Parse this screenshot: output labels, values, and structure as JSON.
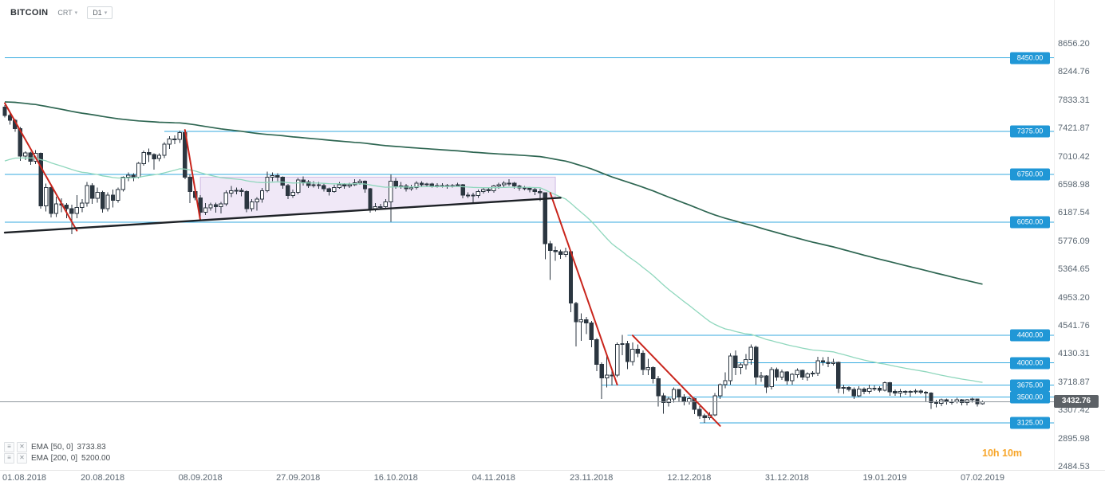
{
  "toolbar": {
    "symbol": "BITCOIN",
    "chart_type": "CRT",
    "timeframe": "D1"
  },
  "icons": {
    "caret": "▾",
    "menu": "≡",
    "close": "✕"
  },
  "countdown": "10h 10m",
  "indicators": [
    {
      "name": "EMA",
      "params": "[50, 0]",
      "value": "3733.83"
    },
    {
      "name": "EMA",
      "params": "[200, 0]",
      "value": "5200.00"
    }
  ],
  "colors": {
    "accent_line": "#35aadf",
    "accent_badge": "#2097d6",
    "candle_stroke": "#2b3640",
    "bear_fill": "#2b3640",
    "bull_fill": "#ffffff",
    "ema50": "#8fd7bd",
    "ema200": "#2e6652",
    "red": "#c9251c",
    "black": "#1d2126",
    "region_fill": "rgba(205,180,230,0.30)",
    "region_stroke": "rgba(160,120,200,0.45)",
    "current_line": "#8e959b",
    "current_badge": "#5c6166",
    "countdown": "#f7a528"
  },
  "chart_data": {
    "type": "candlestick",
    "title": "BITCOIN",
    "timeframe": "D1",
    "start_date": "2018-08-01",
    "current_price": 3432.76,
    "current_price_label": "3432.76",
    "y_axis": {
      "min": 2484.53,
      "max": 8656.2,
      "tick_labels": [
        "8656.20",
        "8244.76",
        "7833.31",
        "7421.87",
        "7010.42",
        "6598.98",
        "6187.54",
        "5776.09",
        "5364.65",
        "4953.20",
        "4541.76",
        "4130.31",
        "3718.87",
        "3307.42",
        "2895.98",
        "2484.53"
      ]
    },
    "x_ticks": [
      {
        "text": "01.08.2018",
        "i": 0
      },
      {
        "text": "20.08.2018",
        "i": 19
      },
      {
        "text": "08.09.2018",
        "i": 38
      },
      {
        "text": "27.09.2018",
        "i": 57
      },
      {
        "text": "16.10.2018",
        "i": 76
      },
      {
        "text": "04.11.2018",
        "i": 95
      },
      {
        "text": "23.11.2018",
        "i": 114
      },
      {
        "text": "12.12.2018",
        "i": 133
      },
      {
        "text": "31.12.2018",
        "i": 152
      },
      {
        "text": "19.01.2019",
        "i": 171
      },
      {
        "text": "07.02.2019",
        "i": 190
      }
    ],
    "levels": [
      {
        "price": 8450,
        "label": "8450.00",
        "from": 0
      },
      {
        "price": 7375,
        "label": "7375.00",
        "from": 31
      },
      {
        "price": 6750,
        "label": "6750.00",
        "from": 0
      },
      {
        "price": 6050,
        "label": "6050.00",
        "from": 0
      },
      {
        "price": 4400,
        "label": "4400.00",
        "from": 121
      },
      {
        "price": 4000,
        "label": "4000.00",
        "from": 142
      },
      {
        "price": 3675,
        "label": "3675.00",
        "from": 116
      },
      {
        "price": 3500,
        "label": "3500.00",
        "from": 128
      },
      {
        "price": 3125,
        "label": "3125.00",
        "from": 135
      }
    ],
    "overlays": [
      {
        "name": "ema-50-line",
        "type": "ema",
        "period": 50,
        "seed": 6920,
        "color_key": "ema50",
        "width": 1.3
      },
      {
        "name": "ema-200-line",
        "type": "ema",
        "period": 200,
        "seed": 7810,
        "color_key": "ema200",
        "width": 1.7
      }
    ],
    "trendlines": [
      {
        "from": [
          0,
          7790
        ],
        "to": [
          14,
          5930
        ],
        "color": "red",
        "width": 2
      },
      {
        "from": [
          35,
          7400
        ],
        "to": [
          38,
          6080
        ],
        "color": "red",
        "width": 2
      },
      {
        "from": [
          106,
          6480
        ],
        "to": [
          119,
          3680
        ],
        "color": "red",
        "width": 2
      },
      {
        "from": [
          122,
          4400
        ],
        "to": [
          139,
          3080
        ],
        "color": "red",
        "width": 2
      },
      {
        "from": [
          0,
          5900
        ],
        "to": [
          108,
          6410
        ],
        "color": "black",
        "width": 2.4
      }
    ],
    "region": {
      "points": [
        [
          38,
          6710
        ],
        [
          107,
          6710
        ],
        [
          107,
          6400
        ],
        [
          38,
          6080
        ]
      ]
    },
    "candles": [
      [
        7735,
        7760,
        7580,
        7610
      ],
      [
        7610,
        7650,
        7475,
        7540
      ],
      [
        7540,
        7560,
        7370,
        7420
      ],
      [
        7420,
        7440,
        6950,
        7015
      ],
      [
        7015,
        7090,
        6960,
        7065
      ],
      [
        7065,
        7080,
        6890,
        6940
      ],
      [
        6940,
        7105,
        6900,
        7060
      ],
      [
        7060,
        7070,
        6250,
        6290
      ],
      [
        6290,
        6615,
        6210,
        6560
      ],
      [
        6560,
        6570,
        6120,
        6180
      ],
      [
        6180,
        6425,
        6130,
        6320
      ],
      [
        6320,
        6400,
        6200,
        6300
      ],
      [
        6300,
        6330,
        6110,
        6250
      ],
      [
        6250,
        6310,
        5880,
        6180
      ],
      [
        6180,
        6450,
        6110,
        6270
      ],
      [
        6270,
        6390,
        6200,
        6330
      ],
      [
        6330,
        6640,
        6280,
        6590
      ],
      [
        6590,
        6620,
        6320,
        6400
      ],
      [
        6400,
        6560,
        6340,
        6490
      ],
      [
        6490,
        6510,
        6190,
        6250
      ],
      [
        6250,
        6490,
        6210,
        6450
      ],
      [
        6450,
        6530,
        6270,
        6370
      ],
      [
        6370,
        6560,
        6340,
        6530
      ],
      [
        6530,
        6720,
        6500,
        6710
      ],
      [
        6710,
        6780,
        6650,
        6740
      ],
      [
        6740,
        6770,
        6650,
        6710
      ],
      [
        6710,
        6930,
        6690,
        6910
      ],
      [
        6910,
        7100,
        6880,
        7070
      ],
      [
        7070,
        7130,
        6930,
        7040
      ],
      [
        7040,
        7060,
        6820,
        6980
      ],
      [
        6980,
        7060,
        6940,
        7030
      ],
      [
        7030,
        7220,
        6990,
        7190
      ],
      [
        7190,
        7310,
        7120,
        7270
      ],
      [
        7270,
        7320,
        7190,
        7260
      ],
      [
        7260,
        7390,
        7210,
        7360
      ],
      [
        7360,
        7380,
        6680,
        6710
      ],
      [
        6710,
        6750,
        6330,
        6500
      ],
      [
        6500,
        6560,
        6370,
        6410
      ],
      [
        6410,
        6450,
        6120,
        6200
      ],
      [
        6200,
        6330,
        6160,
        6260
      ],
      [
        6260,
        6340,
        6220,
        6310
      ],
      [
        6310,
        6340,
        6190,
        6280
      ],
      [
        6280,
        6350,
        6180,
        6320
      ],
      [
        6320,
        6520,
        6290,
        6480
      ],
      [
        6480,
        6580,
        6420,
        6510
      ],
      [
        6510,
        6560,
        6460,
        6520
      ],
      [
        6520,
        6550,
        6430,
        6500
      ],
      [
        6500,
        6520,
        6200,
        6250
      ],
      [
        6250,
        6390,
        6210,
        6350
      ],
      [
        6350,
        6420,
        6220,
        6390
      ],
      [
        6390,
        6550,
        6340,
        6510
      ],
      [
        6510,
        6790,
        6490,
        6710
      ],
      [
        6710,
        6780,
        6650,
        6730
      ],
      [
        6730,
        6770,
        6650,
        6710
      ],
      [
        6710,
        6720,
        6540,
        6590
      ],
      [
        6590,
        6610,
        6390,
        6440
      ],
      [
        6440,
        6530,
        6410,
        6490
      ],
      [
        6490,
        6700,
        6460,
        6670
      ],
      [
        6670,
        6720,
        6590,
        6640
      ],
      [
        6640,
        6670,
        6550,
        6590
      ],
      [
        6590,
        6650,
        6560,
        6600
      ],
      [
        6600,
        6640,
        6540,
        6590
      ],
      [
        6590,
        6620,
        6500,
        6540
      ],
      [
        6540,
        6560,
        6440,
        6500
      ],
      [
        6500,
        6600,
        6480,
        6560
      ],
      [
        6560,
        6640,
        6540,
        6600
      ],
      [
        6600,
        6620,
        6540,
        6580
      ],
      [
        6580,
        6630,
        6550,
        6600
      ],
      [
        6600,
        6680,
        6580,
        6630
      ],
      [
        6630,
        6680,
        6600,
        6650
      ],
      [
        6650,
        6660,
        6480,
        6540
      ],
      [
        6540,
        6550,
        6190,
        6250
      ],
      [
        6250,
        6330,
        6210,
        6280
      ],
      [
        6280,
        6320,
        6230,
        6280
      ],
      [
        6280,
        6390,
        6250,
        6350
      ],
      [
        6350,
        6750,
        6060,
        6650
      ],
      [
        6650,
        6700,
        6540,
        6580
      ],
      [
        6580,
        6640,
        6540,
        6580
      ],
      [
        6580,
        6610,
        6500,
        6540
      ],
      [
        6540,
        6600,
        6510,
        6560
      ],
      [
        6560,
        6650,
        6530,
        6620
      ],
      [
        6620,
        6650,
        6570,
        6600
      ],
      [
        6600,
        6630,
        6570,
        6610
      ],
      [
        6610,
        6630,
        6560,
        6590
      ],
      [
        6590,
        6620,
        6560,
        6590
      ],
      [
        6590,
        6620,
        6560,
        6590
      ],
      [
        6590,
        6610,
        6540,
        6580
      ],
      [
        6580,
        6610,
        6560,
        6590
      ],
      [
        6590,
        6630,
        6570,
        6600
      ],
      [
        6600,
        6610,
        6400,
        6450
      ],
      [
        6450,
        6490,
        6410,
        6450
      ],
      [
        6450,
        6480,
        6340,
        6440
      ],
      [
        6440,
        6530,
        6410,
        6500
      ],
      [
        6500,
        6560,
        6470,
        6530
      ],
      [
        6530,
        6560,
        6480,
        6510
      ],
      [
        6510,
        6600,
        6480,
        6580
      ],
      [
        6580,
        6630,
        6540,
        6600
      ],
      [
        6600,
        6650,
        6560,
        6620
      ],
      [
        6620,
        6680,
        6580,
        6620
      ],
      [
        6620,
        6640,
        6540,
        6580
      ],
      [
        6580,
        6600,
        6510,
        6550
      ],
      [
        6550,
        6580,
        6520,
        6550
      ],
      [
        6550,
        6570,
        6490,
        6530
      ],
      [
        6530,
        6550,
        6450,
        6500
      ],
      [
        6500,
        6540,
        6360,
        6480
      ],
      [
        6480,
        6490,
        5510,
        5740
      ],
      [
        5740,
        5780,
        5210,
        5640
      ],
      [
        5640,
        5700,
        5490,
        5620
      ],
      [
        5620,
        5650,
        5520,
        5580
      ],
      [
        5580,
        5680,
        5540,
        5620
      ],
      [
        5620,
        5630,
        4740,
        4870
      ],
      [
        4870,
        4890,
        4240,
        4600
      ],
      [
        4600,
        4720,
        4320,
        4630
      ],
      [
        4630,
        4670,
        4420,
        4580
      ],
      [
        4580,
        4610,
        4230,
        4340
      ],
      [
        4340,
        4360,
        3880,
        3980
      ],
      [
        3980,
        4010,
        3475,
        3780
      ],
      [
        3780,
        4120,
        3640,
        3820
      ],
      [
        3820,
        3910,
        3670,
        3820
      ],
      [
        3820,
        4300,
        3790,
        4270
      ],
      [
        4270,
        4410,
        4110,
        4280
      ],
      [
        4280,
        4320,
        3910,
        4020
      ],
      [
        4020,
        4300,
        3960,
        4200
      ],
      [
        4200,
        4270,
        4080,
        4140
      ],
      [
        4140,
        4180,
        3820,
        3900
      ],
      [
        3900,
        4060,
        3820,
        3930
      ],
      [
        3930,
        3950,
        3700,
        3770
      ],
      [
        3770,
        3810,
        3360,
        3520
      ],
      [
        3520,
        3560,
        3260,
        3420
      ],
      [
        3420,
        3510,
        3360,
        3470
      ],
      [
        3470,
        3640,
        3420,
        3610
      ],
      [
        3610,
        3620,
        3430,
        3500
      ],
      [
        3500,
        3540,
        3380,
        3430
      ],
      [
        3430,
        3510,
        3390,
        3480
      ],
      [
        3480,
        3490,
        3250,
        3320
      ],
      [
        3320,
        3370,
        3180,
        3230
      ],
      [
        3230,
        3260,
        3122,
        3200
      ],
      [
        3200,
        3280,
        3170,
        3240
      ],
      [
        3240,
        3560,
        3220,
        3520
      ],
      [
        3520,
        3700,
        3470,
        3680
      ],
      [
        3680,
        3860,
        3630,
        3740
      ],
      [
        3740,
        4140,
        3680,
        4100
      ],
      [
        4100,
        4180,
        3820,
        3930
      ],
      [
        3930,
        4000,
        3830,
        3970
      ],
      [
        3970,
        4130,
        3900,
        4050
      ],
      [
        4050,
        4270,
        3970,
        4230
      ],
      [
        4230,
        4250,
        3680,
        3790
      ],
      [
        3790,
        3870,
        3720,
        3810
      ],
      [
        3810,
        3820,
        3560,
        3650
      ],
      [
        3650,
        3940,
        3610,
        3900
      ],
      [
        3900,
        3930,
        3740,
        3790
      ],
      [
        3790,
        3900,
        3750,
        3870
      ],
      [
        3870,
        3880,
        3680,
        3740
      ],
      [
        3740,
        3850,
        3680,
        3830
      ],
      [
        3830,
        3920,
        3780,
        3890
      ],
      [
        3890,
        3900,
        3750,
        3790
      ],
      [
        3790,
        3860,
        3740,
        3840
      ],
      [
        3840,
        3880,
        3800,
        3850
      ],
      [
        3850,
        4090,
        3810,
        4030
      ],
      [
        4030,
        4080,
        3960,
        4010
      ],
      [
        4010,
        4090,
        3940,
        3990
      ],
      [
        3990,
        4060,
        3960,
        4010
      ],
      [
        4010,
        4020,
        3560,
        3630
      ],
      [
        3630,
        3680,
        3550,
        3640
      ],
      [
        3640,
        3660,
        3580,
        3610
      ],
      [
        3610,
        3640,
        3470,
        3520
      ],
      [
        3520,
        3660,
        3500,
        3620
      ],
      [
        3620,
        3640,
        3540,
        3580
      ],
      [
        3580,
        3680,
        3550,
        3630
      ],
      [
        3630,
        3670,
        3590,
        3630
      ],
      [
        3630,
        3660,
        3570,
        3600
      ],
      [
        3600,
        3730,
        3580,
        3710
      ],
      [
        3710,
        3720,
        3520,
        3580
      ],
      [
        3580,
        3610,
        3520,
        3560
      ],
      [
        3560,
        3620,
        3500,
        3580
      ],
      [
        3580,
        3600,
        3530,
        3570
      ],
      [
        3570,
        3600,
        3510,
        3580
      ],
      [
        3580,
        3620,
        3550,
        3590
      ],
      [
        3590,
        3610,
        3540,
        3570
      ],
      [
        3570,
        3590,
        3440,
        3560
      ],
      [
        3560,
        3570,
        3330,
        3420
      ],
      [
        3420,
        3460,
        3350,
        3410
      ],
      [
        3410,
        3480,
        3370,
        3460
      ],
      [
        3460,
        3480,
        3390,
        3430
      ],
      [
        3430,
        3470,
        3390,
        3430
      ],
      [
        3430,
        3490,
        3410,
        3460
      ],
      [
        3460,
        3470,
        3380,
        3420
      ],
      [
        3420,
        3470,
        3380,
        3460
      ],
      [
        3460,
        3490,
        3420,
        3470
      ],
      [
        3470,
        3480,
        3360,
        3400
      ],
      [
        3400,
        3450,
        3390,
        3432.76
      ]
    ]
  }
}
